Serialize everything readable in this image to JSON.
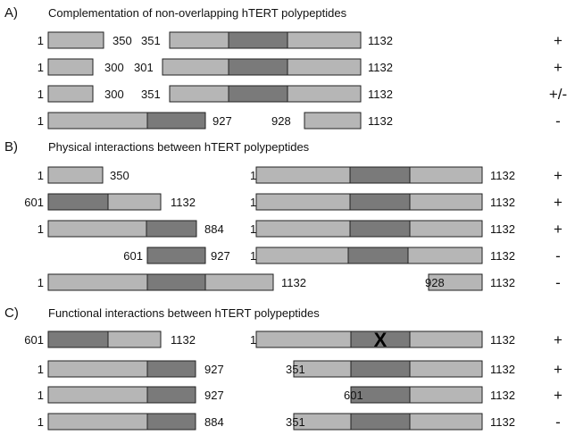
{
  "sections": [
    {
      "letter": "A)",
      "title": "Complementation of non-overlapping hTERT polypeptides",
      "rows": [
        {
          "left": {
            "start": "1",
            "end": "350"
          },
          "right": {
            "start": "351",
            "end": "1132"
          },
          "result": "+"
        },
        {
          "left": {
            "start": "1",
            "end": "300"
          },
          "right": {
            "start": "301",
            "end": "1132"
          },
          "result": "+"
        },
        {
          "left": {
            "start": "1",
            "end": "300"
          },
          "right": {
            "start": "351",
            "end": "1132"
          },
          "result": "+/-"
        },
        {
          "left": {
            "start": "1",
            "end": "927"
          },
          "right": {
            "start": "928",
            "end": "1132"
          },
          "result": "-"
        }
      ]
    },
    {
      "letter": "B)",
      "title": "Physical interactions between hTERT polypeptides",
      "rows": [
        {
          "left": {
            "start": "1",
            "end": "350"
          },
          "right": {
            "start": "1",
            "end": "1132"
          },
          "result": "+"
        },
        {
          "left": {
            "start": "601",
            "end": "1132"
          },
          "right": {
            "start": "1",
            "end": "1132"
          },
          "result": "+"
        },
        {
          "left": {
            "start": "1",
            "end": "884"
          },
          "right": {
            "start": "1",
            "end": "1132"
          },
          "result": "+"
        },
        {
          "left": {
            "start": "601",
            "end": "927"
          },
          "right": {
            "start": "1",
            "end": "1132"
          },
          "result": "-"
        },
        {
          "left": {
            "start": "1",
            "end": "1132"
          },
          "right": {
            "start": "928",
            "end": "1132"
          },
          "result": "-"
        }
      ]
    },
    {
      "letter": "C)",
      "title": "Functional interactions between hTERT polypeptides",
      "rows": [
        {
          "left": {
            "start": "601",
            "end": "1132"
          },
          "right": {
            "start": "1",
            "end": "1132",
            "mark": "X"
          },
          "result": "+"
        },
        {
          "left": {
            "start": "1",
            "end": "927"
          },
          "right": {
            "start": "351",
            "end": "1132"
          },
          "result": "+"
        },
        {
          "left": {
            "start": "1",
            "end": "927"
          },
          "right": {
            "start": "601",
            "end": "1132"
          },
          "result": "+"
        },
        {
          "left": {
            "start": "1",
            "end": "884"
          },
          "right": {
            "start": "351",
            "end": "1132"
          },
          "result": "-"
        }
      ]
    }
  ]
}
